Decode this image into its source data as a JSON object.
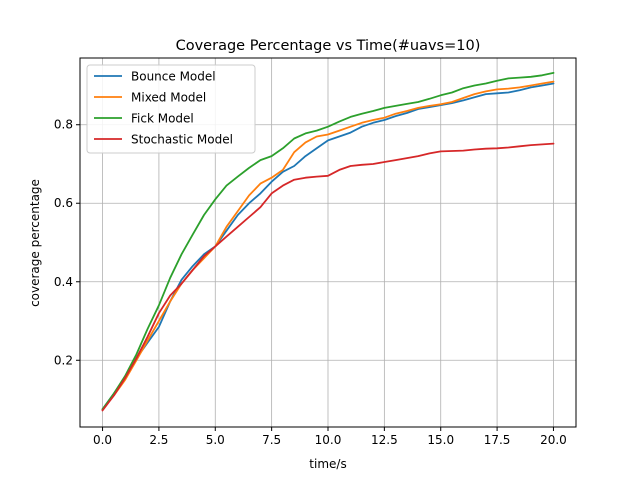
{
  "chart_data": {
    "type": "line",
    "title": "Coverage Percentage vs Time(#uavs=10)",
    "xlabel": "time/s",
    "ylabel": "coverage percentage",
    "xlim": [
      -1.0,
      21.0
    ],
    "ylim": [
      0.03,
      0.97
    ],
    "xticks": [
      0.0,
      2.5,
      5.0,
      7.5,
      10.0,
      12.5,
      15.0,
      17.5,
      20.0
    ],
    "xtick_labels": [
      "0.0",
      "2.5",
      "5.0",
      "7.5",
      "10.0",
      "12.5",
      "15.0",
      "17.5",
      "20.0"
    ],
    "yticks": [
      0.2,
      0.4,
      0.6,
      0.8
    ],
    "ytick_labels": [
      "0.2",
      "0.4",
      "0.6",
      "0.8"
    ],
    "grid": true,
    "legend_position": "upper-left",
    "series": [
      {
        "name": "Bounce Model",
        "color": "#1f77b4",
        "x": [
          0,
          0.5,
          1,
          1.5,
          2,
          2.5,
          3,
          3.5,
          4,
          4.5,
          5,
          5.5,
          6,
          6.5,
          7,
          7.5,
          8,
          8.5,
          9,
          9.5,
          10,
          10.5,
          11,
          11.5,
          12,
          12.5,
          13,
          13.5,
          14,
          14.5,
          15,
          15.5,
          16,
          16.5,
          17,
          17.5,
          18,
          18.5,
          19,
          19.5,
          20
        ],
        "y": [
          0.075,
          0.115,
          0.155,
          0.205,
          0.245,
          0.285,
          0.35,
          0.405,
          0.44,
          0.47,
          0.49,
          0.53,
          0.57,
          0.6,
          0.625,
          0.655,
          0.68,
          0.695,
          0.72,
          0.74,
          0.76,
          0.77,
          0.78,
          0.795,
          0.805,
          0.812,
          0.822,
          0.83,
          0.84,
          0.845,
          0.85,
          0.855,
          0.862,
          0.87,
          0.878,
          0.88,
          0.882,
          0.888,
          0.895,
          0.9,
          0.905
        ]
      },
      {
        "name": "Mixed Model",
        "color": "#ff7f0e",
        "x": [
          0,
          0.5,
          1,
          1.5,
          2,
          2.5,
          3,
          3.5,
          4,
          4.5,
          5,
          5.5,
          6,
          6.5,
          7,
          7.5,
          8,
          8.5,
          9,
          9.5,
          10,
          10.5,
          11,
          11.5,
          12,
          12.5,
          13,
          13.5,
          14,
          14.5,
          15,
          15.5,
          16,
          16.5,
          17,
          17.5,
          18,
          18.5,
          19,
          19.5,
          20
        ],
        "y": [
          0.075,
          0.11,
          0.15,
          0.2,
          0.25,
          0.3,
          0.35,
          0.395,
          0.43,
          0.46,
          0.49,
          0.54,
          0.58,
          0.62,
          0.65,
          0.665,
          0.685,
          0.73,
          0.755,
          0.77,
          0.775,
          0.785,
          0.795,
          0.805,
          0.812,
          0.818,
          0.828,
          0.835,
          0.843,
          0.848,
          0.852,
          0.858,
          0.868,
          0.878,
          0.885,
          0.89,
          0.892,
          0.895,
          0.9,
          0.905,
          0.91
        ]
      },
      {
        "name": "Fick Model",
        "color": "#2ca02c",
        "x": [
          0,
          0.5,
          1,
          1.5,
          2,
          2.5,
          3,
          3.5,
          4,
          4.5,
          5,
          5.5,
          6,
          6.5,
          7,
          7.5,
          8,
          8.5,
          9,
          9.5,
          10,
          10.5,
          11,
          11.5,
          12,
          12.5,
          13,
          13.5,
          14,
          14.5,
          15,
          15.5,
          16,
          16.5,
          17,
          17.5,
          18,
          18.5,
          19,
          19.5,
          20
        ],
        "y": [
          0.075,
          0.115,
          0.16,
          0.215,
          0.28,
          0.34,
          0.41,
          0.47,
          0.52,
          0.57,
          0.61,
          0.645,
          0.668,
          0.69,
          0.71,
          0.72,
          0.74,
          0.765,
          0.778,
          0.785,
          0.795,
          0.808,
          0.82,
          0.828,
          0.835,
          0.843,
          0.848,
          0.853,
          0.858,
          0.866,
          0.875,
          0.882,
          0.893,
          0.9,
          0.905,
          0.912,
          0.918,
          0.92,
          0.922,
          0.926,
          0.932
        ]
      },
      {
        "name": "Stochastic Model",
        "color": "#d62728",
        "x": [
          0,
          0.5,
          1,
          1.5,
          2,
          2.5,
          3,
          3.5,
          4,
          4.5,
          5,
          5.5,
          6,
          6.5,
          7,
          7.5,
          8,
          8.5,
          9,
          9.5,
          10,
          10.5,
          11,
          11.5,
          12,
          12.5,
          13,
          13.5,
          14,
          14.5,
          15,
          15.5,
          16,
          16.5,
          17,
          17.5,
          18,
          18.5,
          19,
          19.5,
          20
        ],
        "y": [
          0.072,
          0.11,
          0.155,
          0.205,
          0.26,
          0.32,
          0.365,
          0.395,
          0.43,
          0.465,
          0.49,
          0.515,
          0.54,
          0.565,
          0.59,
          0.625,
          0.645,
          0.66,
          0.665,
          0.668,
          0.67,
          0.685,
          0.695,
          0.698,
          0.7,
          0.705,
          0.71,
          0.715,
          0.72,
          0.727,
          0.732,
          0.733,
          0.734,
          0.737,
          0.739,
          0.74,
          0.742,
          0.745,
          0.748,
          0.75,
          0.752
        ]
      }
    ]
  }
}
